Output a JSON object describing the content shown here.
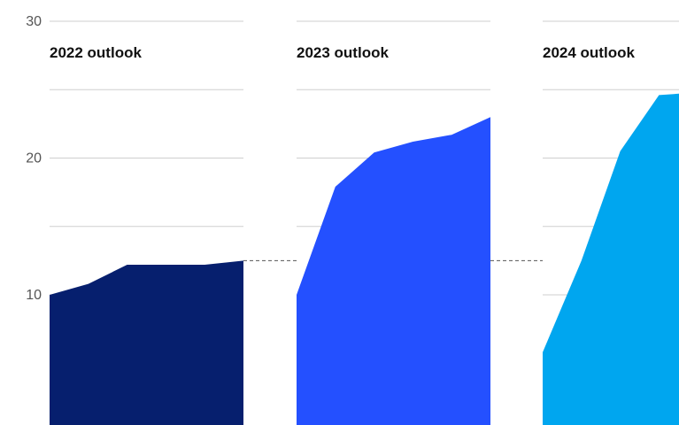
{
  "chart_data": {
    "type": "area",
    "y_ticks": [
      10,
      20,
      30
    ],
    "ylim": [
      0,
      30
    ],
    "grid": true,
    "reference_value": 12.5,
    "panels": [
      {
        "title": "2022 outlook",
        "color": "#061f6e",
        "x": [
          0,
          1,
          2,
          3,
          4,
          5
        ],
        "values": [
          10.0,
          10.8,
          12.2,
          12.2,
          12.2,
          12.5
        ]
      },
      {
        "title": "2023 outlook",
        "color": "#2450ff",
        "x": [
          0,
          1,
          2,
          3,
          4,
          5
        ],
        "values": [
          10.0,
          17.9,
          20.4,
          21.2,
          21.7,
          23.0
        ]
      },
      {
        "title": "2024 outlook",
        "color": "#00a6ef",
        "x": [
          0,
          1,
          2,
          3,
          4,
          5
        ],
        "values": [
          5.8,
          12.5,
          20.5,
          24.6,
          24.8,
          24.9
        ]
      }
    ]
  }
}
